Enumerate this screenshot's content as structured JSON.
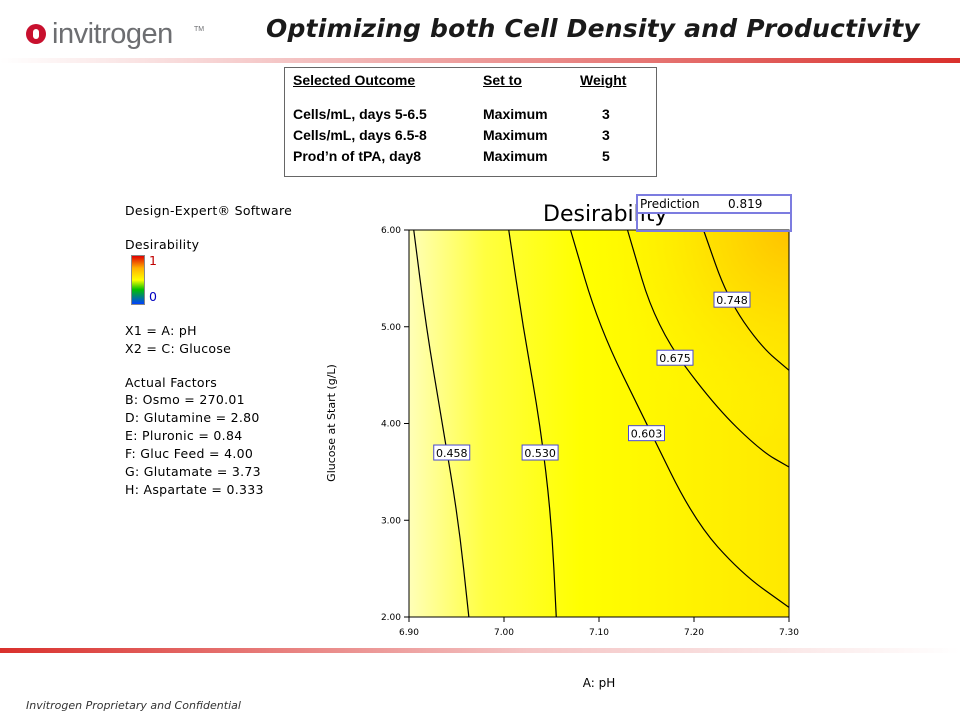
{
  "header": {
    "logo_text": "invitrogen",
    "logo_tm": "TM",
    "title": "Optimizing both Cell Density and Productivity"
  },
  "footer": {
    "text": "Invitrogen Proprietary and Confidential"
  },
  "outcome_table": {
    "headers": [
      "Selected Outcome",
      "Set to",
      "Weight"
    ],
    "rows": [
      [
        "Cells/mL, days 5-6.5",
        "Maximum",
        "3"
      ],
      [
        "Cells/mL, days 6.5-8",
        "Maximum",
        "3"
      ],
      [
        "Prod’n of tPA, day8",
        "Maximum",
        "5"
      ]
    ]
  },
  "legend_panel": {
    "software": "Design-Expert® Software",
    "response": "Desirability",
    "ramp_high": "1",
    "ramp_low": "0",
    "x1": "X1 = A: pH",
    "x2": "X2 = C: Glucose",
    "actual_factors_title": "Actual Factors",
    "factors": [
      "B: Osmo = 270.01",
      "D: Glutamine = 2.80",
      "E: Pluronic = 0.84",
      "F: Gluc Feed = 4.00",
      "G: Glutamate = 3.73",
      "H: Aspartate = 0.333"
    ]
  },
  "prediction": {
    "label": "Prediction",
    "value": "0.819"
  },
  "chart_data": {
    "type": "contour",
    "title": "Desirability",
    "xlabel": "A: pH",
    "ylabel": "Glucose at Start (g/L)",
    "xlim": [
      6.9,
      7.3
    ],
    "ylim": [
      2.0,
      6.0
    ],
    "x_ticks": [
      "6.90",
      "7.00",
      "7.10",
      "7.20",
      "7.30"
    ],
    "y_ticks": [
      "2.00",
      "3.00",
      "4.00",
      "5.00",
      "6.00"
    ],
    "fill_colors": {
      "low": "#ffffa0",
      "mid": "#ffff00",
      "high": "#ffc400"
    },
    "contours": [
      {
        "level": "0.458",
        "label_at": [
          6.945,
          3.7
        ],
        "points": [
          [
            6.905,
            6.0
          ],
          [
            6.918,
            5.0
          ],
          [
            6.935,
            4.0
          ],
          [
            6.952,
            3.0
          ],
          [
            6.963,
            2.0
          ]
        ]
      },
      {
        "level": "0.530",
        "label_at": [
          7.038,
          3.7
        ],
        "points": [
          [
            7.005,
            6.0
          ],
          [
            7.02,
            5.0
          ],
          [
            7.038,
            4.0
          ],
          [
            7.05,
            3.0
          ],
          [
            7.055,
            2.0
          ]
        ]
      },
      {
        "level": "0.603",
        "label_at": [
          7.15,
          3.9
        ],
        "points": [
          [
            7.07,
            6.0
          ],
          [
            7.1,
            5.0
          ],
          [
            7.15,
            4.0
          ],
          [
            7.2,
            3.0
          ],
          [
            7.25,
            2.45
          ],
          [
            7.3,
            2.1
          ]
        ]
      },
      {
        "level": "0.675",
        "label_at": [
          7.18,
          4.68
        ],
        "points": [
          [
            7.13,
            6.0
          ],
          [
            7.16,
            5.0
          ],
          [
            7.22,
            4.2
          ],
          [
            7.27,
            3.72
          ],
          [
            7.3,
            3.55
          ]
        ]
      },
      {
        "level": "0.748",
        "label_at": [
          7.24,
          5.28
        ],
        "points": [
          [
            7.21,
            6.0
          ],
          [
            7.235,
            5.3
          ],
          [
            7.27,
            4.8
          ],
          [
            7.3,
            4.55
          ]
        ]
      }
    ],
    "optimum": {
      "x": 7.3,
      "y": 6.0,
      "desirability": 0.819
    }
  }
}
